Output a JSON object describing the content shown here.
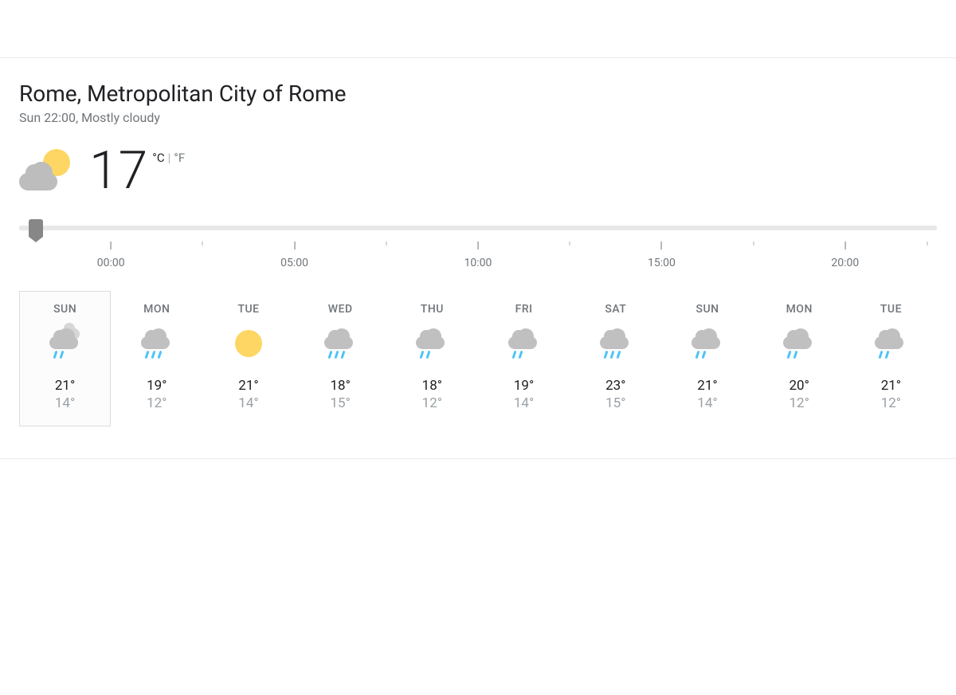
{
  "location": "Rome, Metropolitan City of Rome",
  "subtitle": "Sun 22:00, Mostly cloudy",
  "current": {
    "temp": "17",
    "unit_c": "°C",
    "unit_f": "°F",
    "icon": "partly-cloudy"
  },
  "timeline": {
    "slider_pos_pct": 1,
    "ticks": [
      {
        "pos_pct": 10,
        "label": "00:00",
        "major": true
      },
      {
        "pos_pct": 20,
        "label": "",
        "major": false
      },
      {
        "pos_pct": 30,
        "label": "05:00",
        "major": true
      },
      {
        "pos_pct": 40,
        "label": "",
        "major": false
      },
      {
        "pos_pct": 50,
        "label": "10:00",
        "major": true
      },
      {
        "pos_pct": 60,
        "label": "",
        "major": false
      },
      {
        "pos_pct": 70,
        "label": "15:00",
        "major": true
      },
      {
        "pos_pct": 80,
        "label": "",
        "major": false
      },
      {
        "pos_pct": 90,
        "label": "20:00",
        "major": true
      },
      {
        "pos_pct": 99,
        "label": "",
        "major": false
      }
    ]
  },
  "forecast": [
    {
      "day": "SUN",
      "icon": "rain-cloudy",
      "high": "21°",
      "low": "14°",
      "selected": true
    },
    {
      "day": "MON",
      "icon": "rain-heavy",
      "high": "19°",
      "low": "12°",
      "selected": false
    },
    {
      "day": "TUE",
      "icon": "sunny",
      "high": "21°",
      "low": "14°",
      "selected": false
    },
    {
      "day": "WED",
      "icon": "rain-heavy",
      "high": "18°",
      "low": "15°",
      "selected": false
    },
    {
      "day": "THU",
      "icon": "rain-light",
      "high": "18°",
      "low": "12°",
      "selected": false
    },
    {
      "day": "FRI",
      "icon": "rain-light",
      "high": "19°",
      "low": "14°",
      "selected": false
    },
    {
      "day": "SAT",
      "icon": "rain-heavy",
      "high": "23°",
      "low": "15°",
      "selected": false
    },
    {
      "day": "SUN",
      "icon": "rain-light",
      "high": "21°",
      "low": "14°",
      "selected": false
    },
    {
      "day": "MON",
      "icon": "rain-light",
      "high": "20°",
      "low": "12°",
      "selected": false
    },
    {
      "day": "TUE",
      "icon": "rain-light",
      "high": "21°",
      "low": "12°",
      "selected": false
    }
  ],
  "colors": {
    "cloud": "#c8c8c8",
    "cloud_dark": "#a8a8a8",
    "sun": "#fdd663",
    "rain": "#4fc3f7",
    "text_primary": "#202124",
    "text_secondary": "#70757a",
    "text_muted": "#9aa0a6",
    "border": "#dadce0",
    "slider_track": "#e8e8e8",
    "slider_handle": "#878787"
  }
}
